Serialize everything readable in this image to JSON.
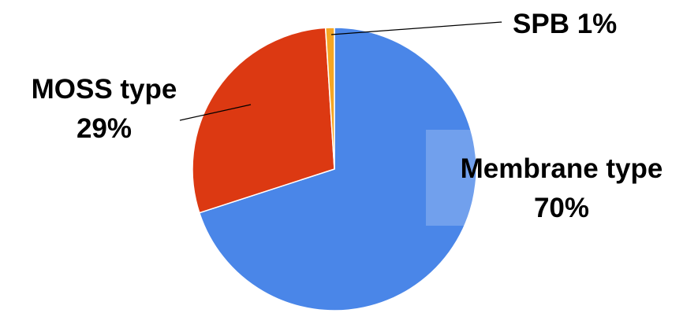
{
  "chart_data": {
    "type": "pie",
    "title": "",
    "slices": [
      {
        "label": "Membrane type",
        "value": 70,
        "display": "70%",
        "color": "#4a86e8"
      },
      {
        "label": "MOSS type",
        "value": 29,
        "display": "29%",
        "color": "#dc3912"
      },
      {
        "label": "SPB",
        "value": 1,
        "display": "1%",
        "color": "#f5a623"
      }
    ],
    "legend": "none",
    "start_angle_deg": 0,
    "direction": "clockwise"
  }
}
